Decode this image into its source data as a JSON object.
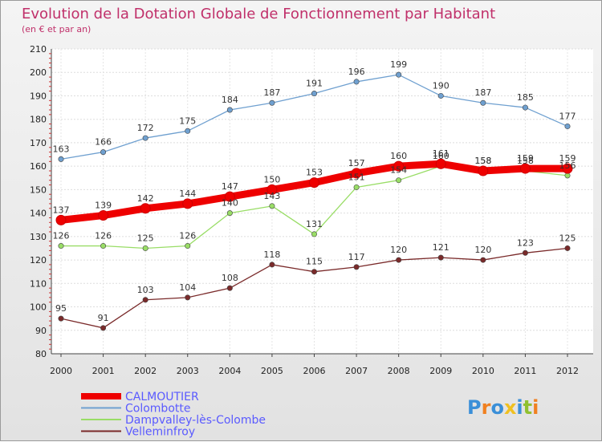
{
  "chart_data": {
    "type": "line",
    "title": "Evolution de la Dotation Globale de Fonctionnement par Habitant",
    "subtitle": "(en € et par an)",
    "xlabel": "",
    "ylabel": "",
    "ylim": [
      80,
      210
    ],
    "y_ticks": [
      80,
      90,
      100,
      110,
      120,
      130,
      140,
      150,
      160,
      170,
      180,
      190,
      200,
      210
    ],
    "grid": true,
    "legend_position": "bottom-left",
    "categories": [
      "2000",
      "2001",
      "2002",
      "2003",
      "2004",
      "2005",
      "2006",
      "2007",
      "2008",
      "2009",
      "2010",
      "2011",
      "2012"
    ],
    "series": [
      {
        "name": "CALMOUTIER",
        "color": "#ee0000",
        "values": [
          137,
          139,
          142,
          144,
          147,
          150,
          153,
          157,
          160,
          161,
          158,
          159,
          159
        ]
      },
      {
        "name": "Colombotte",
        "color": "#6fa0d0",
        "values": [
          163,
          166,
          172,
          175,
          184,
          187,
          191,
          196,
          199,
          190,
          187,
          185,
          177
        ]
      },
      {
        "name": "Dampvalley-lès-Colombe",
        "color": "#99dd66",
        "values": [
          126,
          126,
          125,
          126,
          140,
          143,
          131,
          151,
          154,
          160,
          158,
          158,
          156
        ]
      },
      {
        "name": "Velleminfroy",
        "color": "#7a2a2a",
        "values": [
          95,
          91,
          103,
          104,
          108,
          118,
          115,
          117,
          120,
          121,
          120,
          123,
          125
        ]
      }
    ]
  },
  "logo": {
    "text": "Proxiti",
    "letter_colors": [
      "#3a8fd8",
      "#f08020",
      "#3a8fd8",
      "#f0c020",
      "#3a8fd8",
      "#90c030",
      "#f08020"
    ]
  }
}
